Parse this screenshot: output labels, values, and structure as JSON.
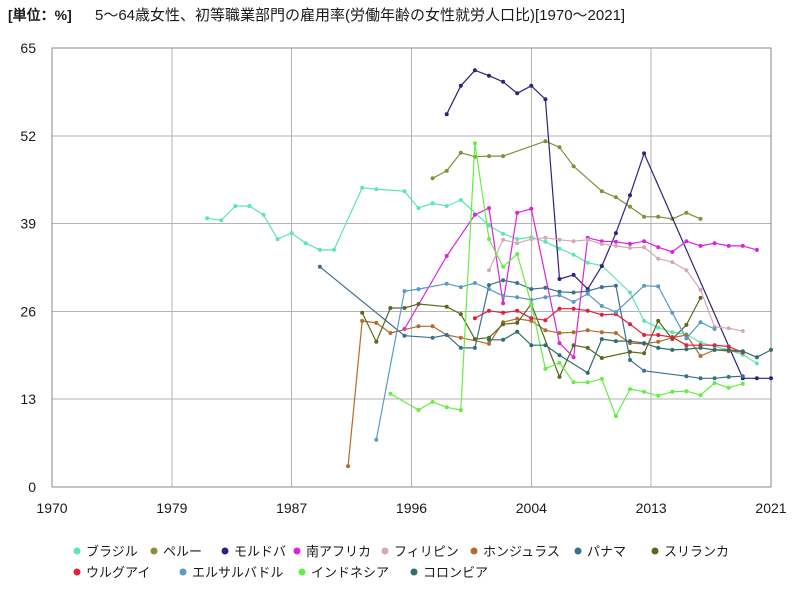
{
  "chart_data": {
    "type": "line",
    "unit_label": "[単位：%]",
    "title": "5～64歳女性、初等職業部門の雇用率(労働年齢の女性就労人口比)[1970～2021]",
    "xlabel": "",
    "ylabel": "",
    "xlim": [
      1970,
      2021
    ],
    "ylim": [
      0,
      65
    ],
    "y_ticks": [
      0,
      13,
      26,
      39,
      52,
      65
    ],
    "x_tick_labels": [
      "1970",
      "1979",
      "1987",
      "1996",
      "2004",
      "2013",
      "2021"
    ],
    "grid": true,
    "legend_position": "bottom",
    "series": [
      {
        "name": "ブラジル",
        "color": "#5ce6b0",
        "x": [
          1981,
          1982,
          1983,
          1984,
          1985,
          1986,
          1987,
          1988,
          1989,
          1990,
          1992,
          1993,
          1995,
          1996,
          1997,
          1998,
          1999,
          2001,
          2002,
          2003,
          2004,
          2005,
          2006,
          2007,
          2008,
          2009,
          2011,
          2012,
          2013,
          2014,
          2015,
          2016,
          2017,
          2018,
          2019,
          2020
        ],
        "y": [
          39.8,
          39.5,
          41.6,
          41.6,
          40.3,
          36.7,
          37.6,
          36.1,
          35.1,
          35.1,
          44.3,
          44.1,
          43.8,
          41.3,
          42.0,
          41.6,
          42.5,
          38.7,
          37.5,
          36.7,
          37.0,
          36.3,
          35.3,
          34.4,
          33.2,
          32.8,
          28.8,
          24.6,
          23.6,
          22.9,
          22.6,
          21.4,
          20.8,
          20.3,
          19.6,
          18.3
        ]
      },
      {
        "name": "ペルー",
        "color": "#8a8a3a",
        "x": [
          1997,
          1998,
          1999,
          2000,
          2001,
          2002,
          2005,
          2006,
          2007,
          2009,
          2010,
          2011,
          2012,
          2013,
          2014,
          2015,
          2016
        ],
        "y": [
          45.7,
          46.8,
          49.5,
          48.9,
          49.0,
          49.0,
          51.2,
          50.3,
          47.5,
          43.8,
          42.9,
          41.5,
          40.0,
          40.0,
          39.7,
          40.6,
          39.7
        ]
      },
      {
        "name": "モルドバ",
        "color": "#2c2380",
        "x": [
          1998,
          1999,
          2000,
          2001,
          2002,
          2003,
          2004,
          2005,
          2006,
          2007,
          2008,
          2009,
          2010,
          2011,
          2012,
          2019,
          2020,
          2021
        ],
        "y": [
          55.2,
          59.4,
          61.7,
          60.9,
          60.0,
          58.3,
          59.4,
          57.4,
          30.8,
          31.4,
          29.3,
          32.7,
          37.6,
          43.2,
          49.4,
          16.1,
          16.1,
          16.1
        ]
      },
      {
        "name": "南アフリカ",
        "color": "#dd22dd",
        "x": [
          1995,
          1998,
          2000,
          2001,
          2002,
          2003,
          2004,
          2006,
          2007,
          2008,
          2009,
          2010,
          2011,
          2012,
          2013,
          2014,
          2015,
          2016,
          2017,
          2018,
          2019,
          2020
        ],
        "y": [
          23.4,
          34.2,
          40.3,
          41.3,
          27.2,
          40.6,
          41.2,
          21.3,
          19.2,
          36.9,
          36.4,
          36.3,
          36.0,
          36.4,
          35.5,
          34.8,
          36.4,
          35.7,
          36.1,
          35.7,
          35.7,
          35.1
        ]
      },
      {
        "name": "フィリピン",
        "color": "#d6a8b3",
        "x": [
          2001,
          2002,
          2003,
          2004,
          2005,
          2006,
          2007,
          2008,
          2009,
          2010,
          2011,
          2012,
          2013,
          2014,
          2015,
          2016,
          2017,
          2018,
          2019
        ],
        "y": [
          32.1,
          36.6,
          36.1,
          36.7,
          36.9,
          36.6,
          36.4,
          36.6,
          36.0,
          35.7,
          35.4,
          35.5,
          33.8,
          33.3,
          32.1,
          29.2,
          23.7,
          23.5,
          23.1
        ]
      },
      {
        "name": "ホンジュラス",
        "color": "#b36b2b",
        "x": [
          1991,
          1992,
          1993,
          1994,
          1996,
          1997,
          1998,
          1999,
          2001,
          2002,
          2003,
          2004,
          2005,
          2006,
          2007,
          2008,
          2009,
          2010,
          2011,
          2012,
          2013,
          2014,
          2015,
          2016,
          2017,
          2018,
          2019
        ],
        "y": [
          3.1,
          24.6,
          24.3,
          22.8,
          23.8,
          23.8,
          22.5,
          22.1,
          21.2,
          24.4,
          24.9,
          24.6,
          23.2,
          22.8,
          22.9,
          23.2,
          22.9,
          22.8,
          21.3,
          21.2,
          21.5,
          22.1,
          22.5,
          19.4,
          20.3,
          20.1,
          20.0
        ]
      },
      {
        "name": "パナマ",
        "color": "#3b6f8f",
        "x": [
          1989,
          1995,
          1997,
          1998,
          1999,
          2000,
          2001,
          2002,
          2003,
          2004,
          2005,
          2006,
          2007,
          2008,
          2009,
          2010,
          2011,
          2012,
          2015,
          2016,
          2017,
          2018,
          2019
        ],
        "y": [
          32.6,
          22.4,
          22.1,
          22.5,
          20.6,
          20.6,
          29.9,
          30.6,
          30.2,
          29.3,
          29.5,
          28.9,
          28.8,
          29.0,
          29.6,
          29.8,
          18.8,
          17.2,
          16.4,
          16.1,
          16.1,
          16.3,
          16.4
        ]
      },
      {
        "name": "スリランカ",
        "color": "#556b20",
        "x": [
          1992,
          1993,
          1994,
          1995,
          1996,
          1998,
          1999,
          2000,
          2001,
          2002,
          2003,
          2004,
          2006,
          2007,
          2008,
          2009,
          2011,
          2012,
          2013,
          2014,
          2015,
          2016
        ],
        "y": [
          25.8,
          21.5,
          26.5,
          26.5,
          27.1,
          26.7,
          25.6,
          21.9,
          22.1,
          24.1,
          24.3,
          27.1,
          16.3,
          21.0,
          20.6,
          19.1,
          20.0,
          19.8,
          24.6,
          21.9,
          24.0,
          28.0
        ]
      },
      {
        "name": "ウルグアイ",
        "color": "#e21f3d",
        "x": [
          2000,
          2001,
          2002,
          2003,
          2004,
          2005,
          2006,
          2007,
          2008,
          2009,
          2010,
          2011,
          2012,
          2013,
          2014,
          2015,
          2016,
          2017,
          2018,
          2019
        ],
        "y": [
          25.0,
          26.1,
          25.8,
          26.1,
          25.0,
          24.7,
          26.4,
          26.4,
          26.1,
          25.5,
          25.6,
          24.1,
          22.5,
          22.5,
          22.2,
          21.0,
          21.0,
          21.0,
          20.8,
          19.9
        ]
      },
      {
        "name": "エルサルバドル",
        "color": "#5a9ac6",
        "x": [
          1993,
          1995,
          1996,
          1998,
          1999,
          2000,
          2001,
          2002,
          2003,
          2004,
          2005,
          2006,
          2007,
          2008,
          2009,
          2010,
          2012,
          2013,
          2014,
          2015,
          2016,
          2017
        ],
        "y": [
          7.0,
          29.0,
          29.3,
          30.1,
          29.6,
          30.2,
          29.3,
          28.3,
          28.1,
          27.7,
          28.1,
          28.4,
          27.4,
          28.6,
          26.8,
          25.9,
          29.8,
          29.7,
          25.8,
          22.0,
          24.4,
          23.4
        ]
      },
      {
        "name": "インドネシア",
        "color": "#66ee44",
        "x": [
          1994,
          1996,
          1997,
          1998,
          1999,
          2000,
          2001,
          2002,
          2003,
          2004,
          2005,
          2006,
          2007,
          2008,
          2009,
          2010,
          2011,
          2012,
          2013,
          2014,
          2015,
          2016,
          2017,
          2018,
          2019
        ],
        "y": [
          13.8,
          11.4,
          12.6,
          11.8,
          11.4,
          50.9,
          36.7,
          32.6,
          34.5,
          27.1,
          17.5,
          18.4,
          15.5,
          15.5,
          16.0,
          10.5,
          14.5,
          14.1,
          13.5,
          14.1,
          14.2,
          13.6,
          15.4,
          14.7,
          15.3
        ]
      },
      {
        "name": "コロンビア",
        "color": "#2f6e6e",
        "x": [
          2001,
          2002,
          2003,
          2004,
          2005,
          2006,
          2008,
          2009,
          2010,
          2011,
          2012,
          2013,
          2014,
          2015,
          2016,
          2017,
          2018,
          2019,
          2020,
          2021
        ],
        "y": [
          21.8,
          21.8,
          23.0,
          21.0,
          21.0,
          19.5,
          16.9,
          21.9,
          21.6,
          21.6,
          21.3,
          20.6,
          20.3,
          20.4,
          20.6,
          20.3,
          20.3,
          20.1,
          19.2,
          20.3
        ]
      }
    ]
  }
}
